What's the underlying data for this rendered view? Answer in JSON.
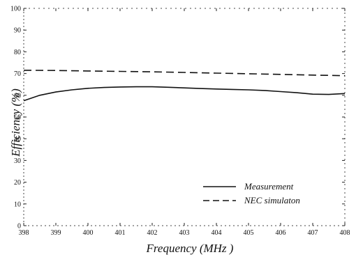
{
  "chart_data": {
    "type": "line",
    "title": "",
    "xlabel": "Frequency  (MHz )",
    "ylabel": "Efficiency (%)",
    "xlim": [
      398,
      408
    ],
    "ylim": [
      0,
      100
    ],
    "x_ticks": [
      398,
      399,
      400,
      401,
      402,
      403,
      404,
      405,
      406,
      407,
      408
    ],
    "y_ticks": [
      0,
      10,
      20,
      30,
      40,
      50,
      60,
      70,
      80,
      90,
      100
    ],
    "grid": false,
    "legend_position": "bottom-right",
    "series": [
      {
        "name": "Measurement",
        "style": "solid",
        "color": "#111111",
        "x": [
          398,
          398.5,
          399,
          399.5,
          400,
          400.5,
          401,
          401.5,
          402,
          402.5,
          403,
          403.5,
          404,
          404.5,
          405,
          405.5,
          406,
          406.5,
          407,
          407.5,
          408
        ],
        "y": [
          57.5,
          60.0,
          61.5,
          62.5,
          63.2,
          63.6,
          63.8,
          63.9,
          63.9,
          63.7,
          63.4,
          63.1,
          62.9,
          62.7,
          62.5,
          62.2,
          61.7,
          61.2,
          60.5,
          60.4,
          60.8
        ]
      },
      {
        "name": "NEC simulaton",
        "style": "dashed",
        "color": "#111111",
        "x": [
          398,
          399,
          400,
          401,
          402,
          403,
          404,
          405,
          406,
          407,
          408
        ],
        "y": [
          71.5,
          71.4,
          71.2,
          71.0,
          70.8,
          70.5,
          70.2,
          69.9,
          69.6,
          69.3,
          69.0
        ]
      }
    ]
  }
}
